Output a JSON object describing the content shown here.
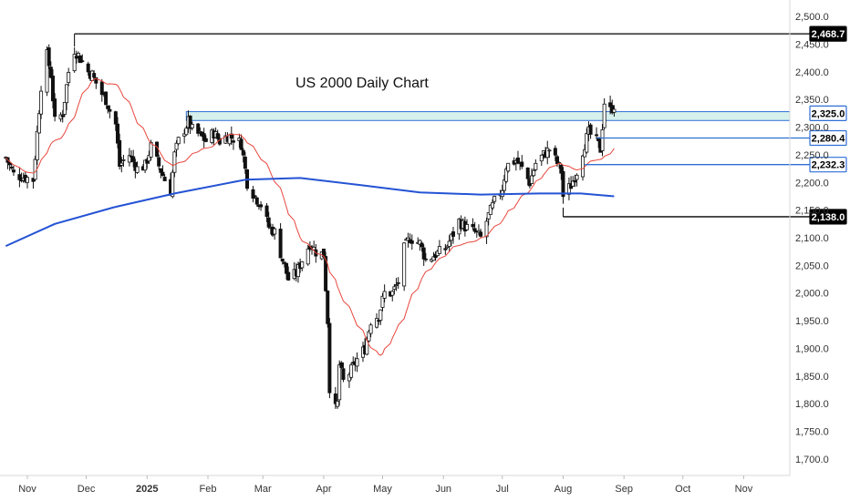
{
  "chart_data": {
    "type": "candlestick",
    "title": "US 2000 Daily Chart",
    "xlabel": "",
    "ylabel": "",
    "ylim": [
      1680,
      2520
    ],
    "y_ticks": [
      "2,500.0",
      "2,450.0",
      "2,400.0",
      "2,350.0",
      "2,300.0",
      "2,250.0",
      "2,200.0",
      "2,150.0",
      "2,100.0",
      "2,050.0",
      "2,000.0",
      "1,950.0",
      "1,900.0",
      "1,850.0",
      "1,800.0",
      "1,750.0",
      "1,700.0"
    ],
    "x_ticks": [
      {
        "label": "Nov",
        "date": "2024-11-01",
        "bold": false
      },
      {
        "label": "Dec",
        "date": "2024-12-01",
        "bold": false
      },
      {
        "label": "2025",
        "date": "2025-01-01",
        "bold": true
      },
      {
        "label": "Feb",
        "date": "2025-02-01",
        "bold": false
      },
      {
        "label": "Mar",
        "date": "2025-03-01",
        "bold": false
      },
      {
        "label": "Apr",
        "date": "2025-04-01",
        "bold": false
      },
      {
        "label": "May",
        "date": "2025-05-01",
        "bold": false
      },
      {
        "label": "Jun",
        "date": "2025-06-01",
        "bold": false
      },
      {
        "label": "Jul",
        "date": "2025-07-01",
        "bold": false
      },
      {
        "label": "Aug",
        "date": "2025-08-01",
        "bold": false
      },
      {
        "label": "Sep",
        "date": "2025-09-01",
        "bold": false
      },
      {
        "label": "Oct",
        "date": "2025-10-01",
        "bold": false
      },
      {
        "label": "Nov",
        "date": "2025-11-01",
        "bold": false
      }
    ],
    "close_series": [
      [
        "2024-10-21",
        2245
      ],
      [
        "2024-10-25",
        2215
      ],
      [
        "2024-10-30",
        2210
      ],
      [
        "2024-11-04",
        2205
      ],
      [
        "2024-11-06",
        2290
      ],
      [
        "2024-11-08",
        2375
      ],
      [
        "2024-11-11",
        2430
      ],
      [
        "2024-11-13",
        2395
      ],
      [
        "2024-11-15",
        2310
      ],
      [
        "2024-11-19",
        2325
      ],
      [
        "2024-11-22",
        2400
      ],
      [
        "2024-11-25",
        2440
      ],
      [
        "2024-11-27",
        2430
      ],
      [
        "2024-12-02",
        2400
      ],
      [
        "2024-12-04",
        2395
      ],
      [
        "2024-12-06",
        2380
      ],
      [
        "2024-12-09",
        2360
      ],
      [
        "2024-12-11",
        2350
      ],
      [
        "2024-12-13",
        2330
      ],
      [
        "2024-12-16",
        2305
      ],
      [
        "2024-12-18",
        2230
      ],
      [
        "2024-12-20",
        2240
      ],
      [
        "2024-12-23",
        2250
      ],
      [
        "2024-12-27",
        2225
      ],
      [
        "2024-12-31",
        2230
      ],
      [
        "2025-01-03",
        2265
      ],
      [
        "2025-01-07",
        2230
      ],
      [
        "2025-01-10",
        2205
      ],
      [
        "2025-01-13",
        2185
      ],
      [
        "2025-01-15",
        2250
      ],
      [
        "2025-01-17",
        2275
      ],
      [
        "2025-01-22",
        2310
      ],
      [
        "2025-01-24",
        2295
      ],
      [
        "2025-01-28",
        2285
      ],
      [
        "2025-01-31",
        2275
      ],
      [
        "2025-02-04",
        2290
      ],
      [
        "2025-02-07",
        2275
      ],
      [
        "2025-02-11",
        2285
      ],
      [
        "2025-02-14",
        2280
      ],
      [
        "2025-02-18",
        2270
      ],
      [
        "2025-02-21",
        2200
      ],
      [
        "2025-02-25",
        2175
      ],
      [
        "2025-02-28",
        2160
      ],
      [
        "2025-03-04",
        2120
      ],
      [
        "2025-03-07",
        2110
      ],
      [
        "2025-03-11",
        2060
      ],
      [
        "2025-03-14",
        2025
      ],
      [
        "2025-03-18",
        2035
      ],
      [
        "2025-03-21",
        2060
      ],
      [
        "2025-03-25",
        2090
      ],
      [
        "2025-03-28",
        2075
      ],
      [
        "2025-04-01",
        2070
      ],
      [
        "2025-04-03",
        1950
      ],
      [
        "2025-04-04",
        1830
      ],
      [
        "2025-04-07",
        1790
      ],
      [
        "2025-04-08",
        1800
      ],
      [
        "2025-04-09",
        1870
      ],
      [
        "2025-04-11",
        1840
      ],
      [
        "2025-04-15",
        1860
      ],
      [
        "2025-04-18",
        1880
      ],
      [
        "2025-04-22",
        1900
      ],
      [
        "2025-04-25",
        1950
      ],
      [
        "2025-04-29",
        1960
      ],
      [
        "2025-05-02",
        2000
      ],
      [
        "2025-05-06",
        2000
      ],
      [
        "2025-05-09",
        2020
      ],
      [
        "2025-05-12",
        2080
      ],
      [
        "2025-05-15",
        2100
      ],
      [
        "2025-05-20",
        2090
      ],
      [
        "2025-05-23",
        2060
      ],
      [
        "2025-05-28",
        2070
      ],
      [
        "2025-06-02",
        2080
      ],
      [
        "2025-06-05",
        2100
      ],
      [
        "2025-06-09",
        2130
      ],
      [
        "2025-06-12",
        2120
      ],
      [
        "2025-06-17",
        2110
      ],
      [
        "2025-06-20",
        2100
      ],
      [
        "2025-06-24",
        2140
      ],
      [
        "2025-06-27",
        2165
      ],
      [
        "2025-07-01",
        2190
      ],
      [
        "2025-07-03",
        2230
      ],
      [
        "2025-07-08",
        2240
      ],
      [
        "2025-07-11",
        2225
      ],
      [
        "2025-07-15",
        2200
      ],
      [
        "2025-07-18",
        2235
      ],
      [
        "2025-07-22",
        2250
      ],
      [
        "2025-07-25",
        2260
      ],
      [
        "2025-07-29",
        2235
      ],
      [
        "2025-07-31",
        2220
      ],
      [
        "2025-08-01",
        2175
      ],
      [
        "2025-08-05",
        2195
      ],
      [
        "2025-08-08",
        2220
      ],
      [
        "2025-08-12",
        2270
      ],
      [
        "2025-08-14",
        2290
      ],
      [
        "2025-08-18",
        2275
      ],
      [
        "2025-08-20",
        2260
      ],
      [
        "2025-08-22",
        2345
      ],
      [
        "2025-08-25",
        2330
      ],
      [
        "2025-08-27",
        2340
      ]
    ],
    "overlays": [
      {
        "name": "",
        "color": "#e8463c",
        "ma_window": 20
      },
      {
        "name": "",
        "color": "#2453d4",
        "ma_window": 200
      }
    ],
    "levels": [
      {
        "value": 2468.7,
        "label": "2,468.7",
        "color": "#000000",
        "from": "2024-11-25"
      },
      {
        "value": 2325.0,
        "label": "2,325.0",
        "color": "#2f6fd6",
        "from": "2025-01-21",
        "zone": [
          2312,
          2328
        ]
      },
      {
        "value": 2280.4,
        "label": "2,280.4",
        "color": "#2f6fd6",
        "from": "2025-08-18"
      },
      {
        "value": 2232.3,
        "label": "2,232.3",
        "color": "#2f6fd6",
        "from": "2025-08-12"
      },
      {
        "value": 2138.0,
        "label": "2,138.0",
        "color": "#000000",
        "from": "2025-08-01"
      }
    ],
    "grid": false,
    "legend": "none"
  }
}
